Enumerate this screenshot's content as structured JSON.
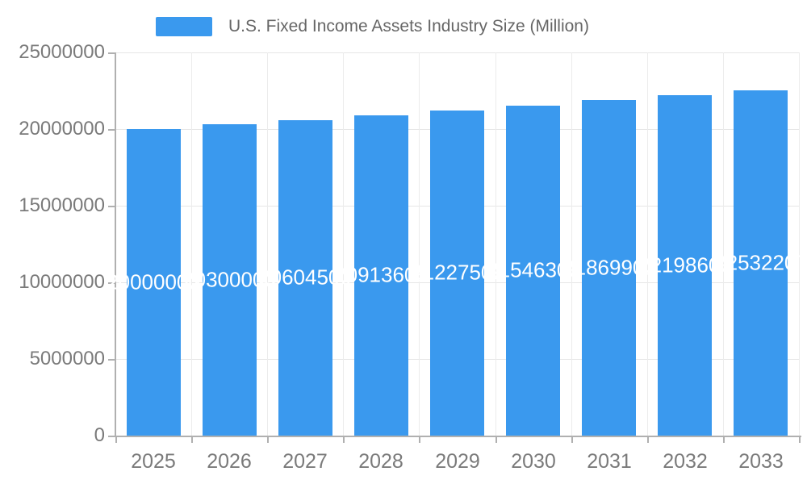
{
  "chart_data": {
    "type": "bar",
    "legend": "U.S. Fixed Income Assets Industry Size (Million)",
    "categories": [
      "2025",
      "2026",
      "2027",
      "2028",
      "2029",
      "2030",
      "2031",
      "2032",
      "2033"
    ],
    "values": [
      20000000,
      20300000,
      20604500,
      20913605,
      21227509,
      21546306,
      21869902,
      22198606,
      22532207
    ],
    "value_labels": [
      "20000000",
      "20300000",
      "20604500",
      "20913605",
      "21227509",
      "21546306",
      "21869902",
      "22198606",
      "22532207"
    ],
    "xlabel": "",
    "ylabel": "",
    "ylim": [
      0,
      25000000
    ],
    "ytick_interval": 5000000,
    "yticks": [
      "0",
      "5000000",
      "10000000",
      "15000000",
      "20000000",
      "25000000"
    ],
    "grid": "horizontal and vertical light gray gridlines",
    "legend_position": "top-left-of-center",
    "value_label_position": "inside-middle",
    "colors": {
      "bar": "#3a99ee",
      "value_label_text": "#ffffff",
      "axis_line": "#b0b0b0",
      "grid_line": "#e6e6e6",
      "tick_label_text": "#7a7a7a",
      "legend_text": "#666666",
      "background": "#ffffff"
    }
  }
}
